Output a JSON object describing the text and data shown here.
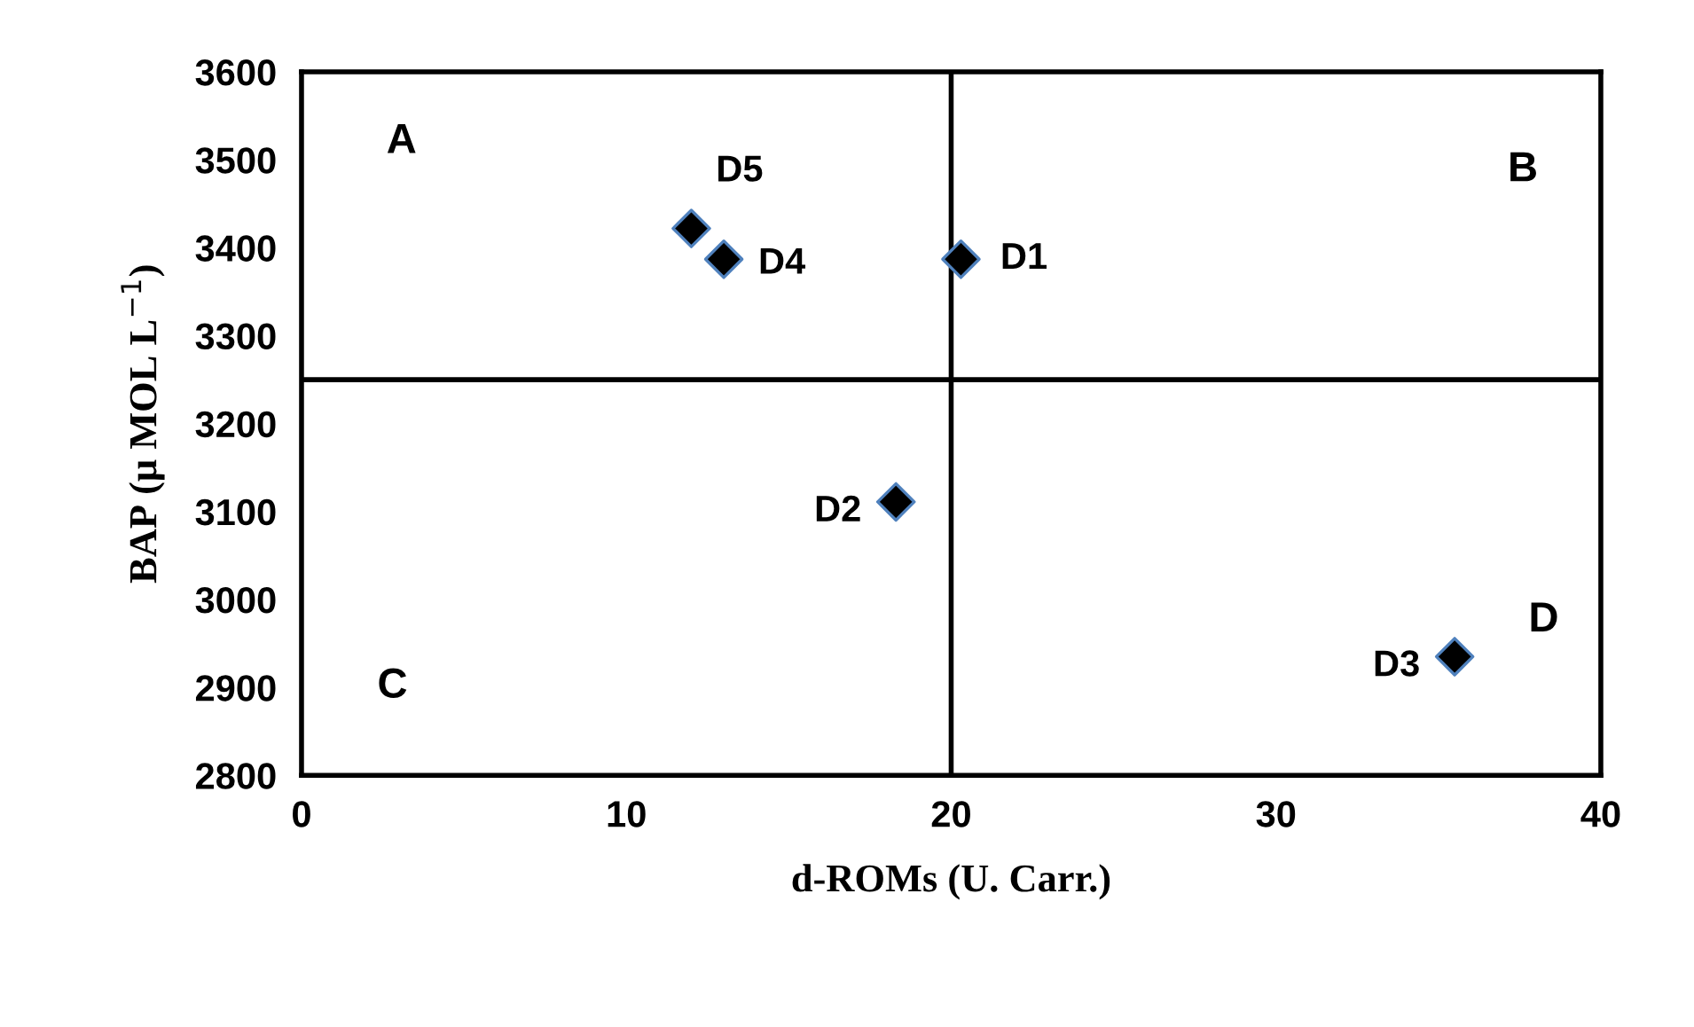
{
  "chart_data": {
    "type": "scatter",
    "xlabel": "d-ROMs (U. Carr.)",
    "ylabel": "BAP (μ MOL L$^{−1}$)",
    "x": [
      20.3,
      18.3,
      35.5,
      13,
      12
    ],
    "values": [
      3387,
      3111,
      2935,
      3387,
      3422
    ],
    "color": "#000000",
    "marker": "diamond",
    "xlim": [
      0,
      40
    ],
    "xticks": [
      0,
      10,
      20,
      30,
      40
    ],
    "ylim": [
      2800,
      3600
    ],
    "yticks": [
      2800,
      2900,
      3000,
      3100,
      3200,
      3300,
      3400,
      3500,
      3600
    ],
    "grid": false,
    "ref_lines": [
      {
        "axis": "x",
        "value": 20,
        "color": "#000000"
      },
      {
        "axis": "y",
        "value": 3250,
        "color": "#000000"
      }
    ],
    "annotations": [
      {
        "text": "D1",
        "x": 20.3,
        "y": 3387
      },
      {
        "text": "D2",
        "x": 18.3,
        "y": 3111
      },
      {
        "text": "D3",
        "x": 35.5,
        "y": 2935
      },
      {
        "text": "D4",
        "x": 13,
        "y": 3387
      },
      {
        "text": "D5",
        "x": 12,
        "y": 3422
      },
      "A",
      "B",
      "C",
      "D"
    ]
  }
}
